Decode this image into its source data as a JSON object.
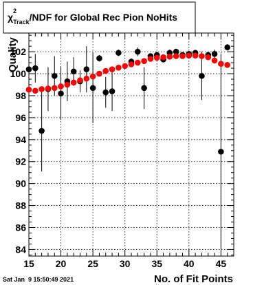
{
  "title": {
    "chi": "χ",
    "sup": "2",
    "sub": "Track",
    "rest": "/NDF for Global Rec Pion NoHits"
  },
  "footer": {
    "timestamp": "Sat Jan  9 15:50:49 2021"
  },
  "chart_data": {
    "type": "scatter",
    "xlabel": "No. of Fit Points",
    "ylabel": "Quality",
    "xlim": [
      15,
      47
    ],
    "ylim": [
      83.4,
      103.7
    ],
    "xticks": [
      15,
      20,
      25,
      30,
      35,
      40,
      45
    ],
    "yticks": [
      84,
      86,
      88,
      90,
      92,
      94,
      96,
      98,
      100,
      102
    ],
    "grid": true,
    "series": [
      {
        "color": "#000000",
        "error_bars": true,
        "x": [
          15,
          16,
          17,
          18,
          19,
          20,
          21,
          22,
          23,
          24,
          25,
          26,
          27,
          28,
          29,
          31,
          32,
          33,
          34,
          35,
          36,
          37,
          38,
          39,
          40,
          41,
          42,
          43,
          44,
          45,
          46
        ],
        "y": [
          100.4,
          100.5,
          94.8,
          98.6,
          99.8,
          98.2,
          99.3,
          100.2,
          99.3,
          100.4,
          98.7,
          101.4,
          98.3,
          98.4,
          101.9,
          101.1,
          102.0,
          98.7,
          101.6,
          101.7,
          101.3,
          101.9,
          102.0,
          101.7,
          101.8,
          101.9,
          99.8,
          101.7,
          101.8,
          92.9,
          102.4
        ],
        "err": [
          0.6,
          1.3,
          3.7,
          2.0,
          1.8,
          2.4,
          1.8,
          1.3,
          1.0,
          2.1,
          3.2,
          0.3,
          1.4,
          1.8,
          0.3,
          0.3,
          0.4,
          1.9,
          0.2,
          0.3,
          0.2,
          0.3,
          0.2,
          0.2,
          0.2,
          0.2,
          2.2,
          0.2,
          0.4,
          8.9,
          0.3
        ]
      },
      {
        "color": "#ff0000",
        "error_bars": false,
        "x": [
          15,
          16,
          17,
          18,
          19,
          20,
          21,
          22,
          23,
          24,
          25,
          26,
          27,
          28,
          29,
          30,
          31,
          32,
          33,
          34,
          35,
          36,
          37,
          38,
          39,
          40,
          41,
          42,
          43,
          44,
          45,
          46
        ],
        "y": [
          98.55,
          98.45,
          98.6,
          98.65,
          98.7,
          98.85,
          99.0,
          99.2,
          99.4,
          99.55,
          99.75,
          100.0,
          100.25,
          100.4,
          100.55,
          100.7,
          100.85,
          101.0,
          101.15,
          101.35,
          101.45,
          101.5,
          101.55,
          101.6,
          101.6,
          101.65,
          101.65,
          101.6,
          101.5,
          101.2,
          100.9,
          100.8
        ]
      }
    ]
  }
}
